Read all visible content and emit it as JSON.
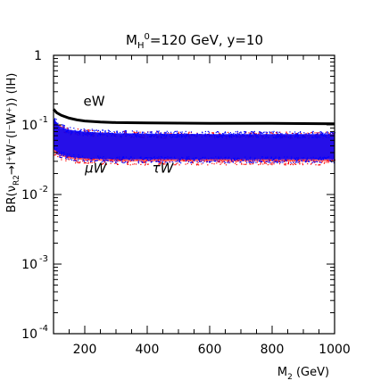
{
  "chart_data": {
    "type": "scatter",
    "title": "M_H°=120 GeV, y=10",
    "title_parts": {
      "m": "M",
      "h": "H",
      "zero": "0",
      "rest": "=120 GeV, y=10"
    },
    "xlabel": "M_2 (GeV)",
    "xlabel_parts": {
      "m": "M",
      "sub": "2",
      "unit": " (GeV)"
    },
    "ylabel": "BR(ν_R2 → l⁺W⁻(l⁻W⁺)) (IH)",
    "ylabel_parts": {
      "pre": "BR(ν",
      "sub": "R2",
      "post": "→l⁺W⁻(l⁻W⁺)) (IH)"
    },
    "xlim": [
      100,
      1000
    ],
    "ylim": [
      0.0001,
      1
    ],
    "yscale": "log",
    "grid": false,
    "x_ticks": [
      {
        "value": 200,
        "label": "200"
      },
      {
        "value": 400,
        "label": "400"
      },
      {
        "value": 600,
        "label": "600"
      },
      {
        "value": 800,
        "label": "800"
      },
      {
        "value": 1000,
        "label": "1000"
      }
    ],
    "y_ticks": [
      {
        "value": 1,
        "base": "1",
        "exp": ""
      },
      {
        "value": 0.1,
        "base": "10",
        "exp": "-1"
      },
      {
        "value": 0.01,
        "base": "10",
        "exp": "-2"
      },
      {
        "value": 0.001,
        "base": "10",
        "exp": "-3"
      },
      {
        "value": 0.0001,
        "base": "10",
        "exp": "-4"
      }
    ],
    "series": [
      {
        "name": "eW",
        "kind": "line",
        "color": "#000000",
        "x": [
          100,
          110,
          125,
          150,
          175,
          200,
          250,
          300,
          400,
          500,
          600,
          700,
          800,
          900,
          1000
        ],
        "y": [
          0.168,
          0.15,
          0.137,
          0.125,
          0.118,
          0.114,
          0.11,
          0.108,
          0.107,
          0.106,
          0.1055,
          0.105,
          0.105,
          0.1045,
          0.104
        ]
      },
      {
        "name": "τW",
        "kind": "band",
        "color": "#0000ff",
        "x": [
          100,
          120,
          150,
          200,
          300,
          400,
          600,
          800,
          1000
        ],
        "y_upper": [
          0.125,
          0.095,
          0.085,
          0.08,
          0.076,
          0.075,
          0.074,
          0.074,
          0.074
        ],
        "y_lower": [
          0.045,
          0.038,
          0.035,
          0.033,
          0.032,
          0.032,
          0.032,
          0.032,
          0.032
        ]
      },
      {
        "name": "μW",
        "kind": "band",
        "color": "#ff0000",
        "x": [
          100,
          120,
          150,
          200,
          300,
          400,
          600,
          800,
          1000
        ],
        "y_upper": [
          0.12,
          0.09,
          0.082,
          0.078,
          0.074,
          0.073,
          0.072,
          0.072,
          0.072
        ],
        "y_lower": [
          0.042,
          0.036,
          0.033,
          0.031,
          0.03,
          0.03,
          0.03,
          0.03,
          0.03
        ]
      }
    ],
    "annotations": [
      {
        "text": "eW",
        "color": "#000000",
        "x": 230,
        "y": 0.19
      },
      {
        "text": "μW",
        "color": "#ff0000",
        "x": 235,
        "y": 0.0205
      },
      {
        "text": "τW",
        "color": "#0000ff",
        "x": 450,
        "y": 0.0205
      }
    ]
  }
}
